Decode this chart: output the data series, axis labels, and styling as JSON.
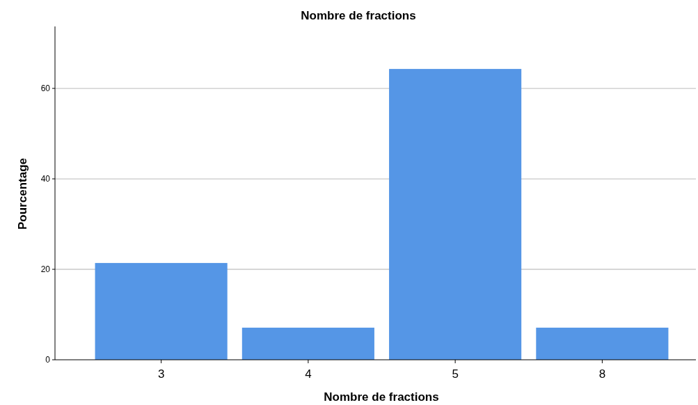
{
  "chart_data": {
    "type": "bar",
    "title": "Nombre de fractions",
    "xlabel": "Nombre de fractions",
    "ylabel": "Pourcentage",
    "categories": [
      "3",
      "4",
      "5",
      "8"
    ],
    "values": [
      21.4,
      7.1,
      64.3,
      7.1
    ],
    "color": "#5596e6",
    "ylim": [
      0,
      73.7
    ],
    "yticks": [
      0,
      20,
      40,
      60
    ],
    "grid": "y"
  }
}
